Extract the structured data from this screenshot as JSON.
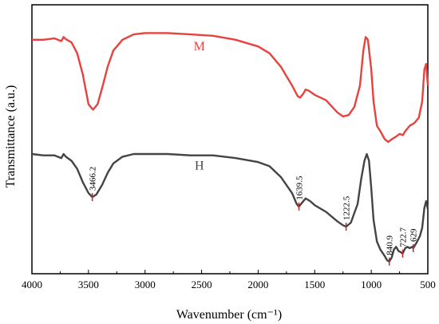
{
  "chart_data": {
    "type": "line",
    "xlabel": "Wavenumber (cm⁻¹)",
    "ylabel": "Transmittance (a.u.)",
    "xlim": [
      4000,
      500
    ],
    "x_ticks": [
      "4000",
      "3500",
      "3000",
      "2500",
      "2000",
      "1500",
      "1000",
      "500"
    ],
    "grid": false,
    "legend": "none",
    "series": [
      {
        "name": "M",
        "color": "#e8423f",
        "points": [
          [
            4000,
            0.87
          ],
          [
            3900,
            0.87
          ],
          [
            3800,
            0.875
          ],
          [
            3740,
            0.865
          ],
          [
            3720,
            0.88
          ],
          [
            3700,
            0.872
          ],
          [
            3650,
            0.86
          ],
          [
            3600,
            0.82
          ],
          [
            3550,
            0.74
          ],
          [
            3500,
            0.63
          ],
          [
            3460,
            0.61
          ],
          [
            3420,
            0.63
          ],
          [
            3380,
            0.69
          ],
          [
            3330,
            0.77
          ],
          [
            3280,
            0.83
          ],
          [
            3200,
            0.87
          ],
          [
            3100,
            0.89
          ],
          [
            3000,
            0.895
          ],
          [
            2800,
            0.895
          ],
          [
            2600,
            0.89
          ],
          [
            2400,
            0.885
          ],
          [
            2200,
            0.87
          ],
          [
            2000,
            0.845
          ],
          [
            1900,
            0.82
          ],
          [
            1800,
            0.77
          ],
          [
            1700,
            0.7
          ],
          [
            1650,
            0.66
          ],
          [
            1630,
            0.655
          ],
          [
            1600,
            0.67
          ],
          [
            1580,
            0.685
          ],
          [
            1550,
            0.68
          ],
          [
            1500,
            0.665
          ],
          [
            1400,
            0.645
          ],
          [
            1300,
            0.6
          ],
          [
            1250,
            0.585
          ],
          [
            1200,
            0.59
          ],
          [
            1150,
            0.62
          ],
          [
            1100,
            0.7
          ],
          [
            1070,
            0.83
          ],
          [
            1050,
            0.88
          ],
          [
            1030,
            0.87
          ],
          [
            1000,
            0.76
          ],
          [
            980,
            0.64
          ],
          [
            950,
            0.55
          ],
          [
            920,
            0.53
          ],
          [
            880,
            0.5
          ],
          [
            850,
            0.49
          ],
          [
            820,
            0.5
          ],
          [
            780,
            0.51
          ],
          [
            750,
            0.52
          ],
          [
            720,
            0.515
          ],
          [
            700,
            0.53
          ],
          [
            660,
            0.55
          ],
          [
            620,
            0.56
          ],
          [
            580,
            0.58
          ],
          [
            550,
            0.64
          ],
          [
            530,
            0.76
          ],
          [
            515,
            0.78
          ],
          [
            500,
            0.7
          ]
        ]
      },
      {
        "name": "H",
        "color": "#444444",
        "points": [
          [
            4000,
            0.445
          ],
          [
            3900,
            0.44
          ],
          [
            3800,
            0.44
          ],
          [
            3740,
            0.43
          ],
          [
            3720,
            0.445
          ],
          [
            3700,
            0.435
          ],
          [
            3650,
            0.42
          ],
          [
            3600,
            0.39
          ],
          [
            3550,
            0.34
          ],
          [
            3500,
            0.3
          ],
          [
            3466,
            0.285
          ],
          [
            3430,
            0.295
          ],
          [
            3380,
            0.33
          ],
          [
            3330,
            0.375
          ],
          [
            3280,
            0.41
          ],
          [
            3200,
            0.435
          ],
          [
            3100,
            0.445
          ],
          [
            3000,
            0.445
          ],
          [
            2800,
            0.445
          ],
          [
            2600,
            0.44
          ],
          [
            2400,
            0.44
          ],
          [
            2200,
            0.43
          ],
          [
            2000,
            0.415
          ],
          [
            1900,
            0.4
          ],
          [
            1800,
            0.36
          ],
          [
            1700,
            0.3
          ],
          [
            1660,
            0.26
          ],
          [
            1640,
            0.25
          ],
          [
            1610,
            0.265
          ],
          [
            1580,
            0.28
          ],
          [
            1540,
            0.27
          ],
          [
            1500,
            0.255
          ],
          [
            1400,
            0.23
          ],
          [
            1300,
            0.195
          ],
          [
            1250,
            0.18
          ],
          [
            1222,
            0.175
          ],
          [
            1180,
            0.19
          ],
          [
            1120,
            0.26
          ],
          [
            1090,
            0.35
          ],
          [
            1060,
            0.42
          ],
          [
            1040,
            0.445
          ],
          [
            1020,
            0.42
          ],
          [
            1000,
            0.32
          ],
          [
            980,
            0.2
          ],
          [
            950,
            0.12
          ],
          [
            920,
            0.09
          ],
          [
            880,
            0.065
          ],
          [
            860,
            0.05
          ],
          [
            841,
            0.045
          ],
          [
            820,
            0.06
          ],
          [
            800,
            0.09
          ],
          [
            780,
            0.1
          ],
          [
            760,
            0.085
          ],
          [
            740,
            0.08
          ],
          [
            723,
            0.075
          ],
          [
            700,
            0.095
          ],
          [
            680,
            0.1
          ],
          [
            660,
            0.095
          ],
          [
            640,
            0.1
          ],
          [
            629,
            0.095
          ],
          [
            600,
            0.115
          ],
          [
            570,
            0.14
          ],
          [
            550,
            0.17
          ],
          [
            530,
            0.245
          ],
          [
            515,
            0.27
          ],
          [
            500,
            0.24
          ]
        ]
      }
    ],
    "peak_labels": [
      {
        "x": 3466.2,
        "y": 0.285,
        "text": "3466.2"
      },
      {
        "x": 1639.5,
        "y": 0.25,
        "text": "1639.5"
      },
      {
        "x": 1222.5,
        "y": 0.175,
        "text": "1222.5"
      },
      {
        "x": 840.9,
        "y": 0.045,
        "text": "840.9"
      },
      {
        "x": 722.7,
        "y": 0.075,
        "text": "722.7"
      },
      {
        "x": 629,
        "y": 0.095,
        "text": "629"
      }
    ]
  }
}
